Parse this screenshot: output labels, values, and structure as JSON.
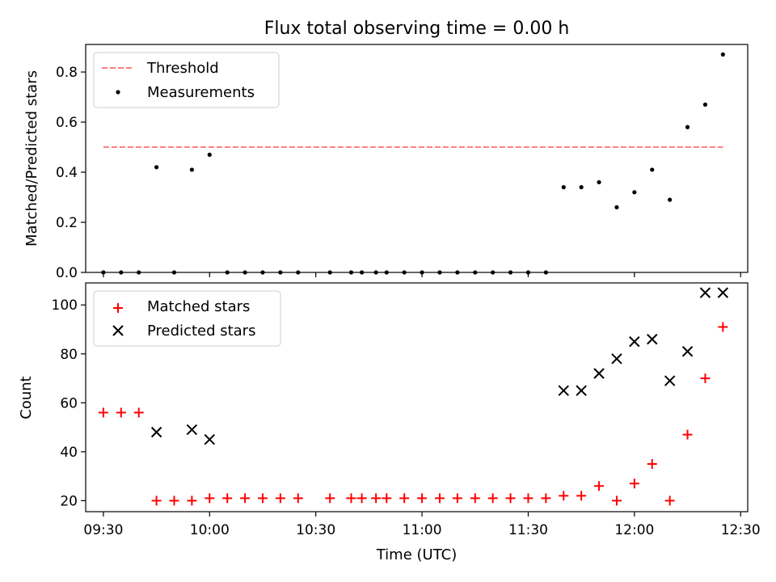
{
  "chart_data": [
    {
      "type": "scatter",
      "title": "Flux total observing time = 0.00 h",
      "xlabel": "",
      "ylabel": "Matched/Predicted stars",
      "xlim": [
        "09:25",
        "12:32"
      ],
      "ylim": [
        0,
        0.91
      ],
      "yticks": [
        "0.0",
        "0.2",
        "0.4",
        "0.6",
        "0.8"
      ],
      "legend": "top-left",
      "grid": false,
      "threshold": {
        "name": "Threshold",
        "value": 0.5,
        "x_start": "09:30",
        "x_end": "12:25",
        "color": "#ff7f7f"
      },
      "series": [
        {
          "name": "Measurements",
          "color": "#000000",
          "points": [
            [
              "09:30",
              0
            ],
            [
              "09:35",
              0
            ],
            [
              "09:40",
              0
            ],
            [
              "09:45",
              0.42
            ],
            [
              "09:50",
              0
            ],
            [
              "09:55",
              0.41
            ],
            [
              "10:00",
              0.47
            ],
            [
              "10:05",
              0
            ],
            [
              "10:10",
              0
            ],
            [
              "10:15",
              0
            ],
            [
              "10:20",
              0
            ],
            [
              "10:25",
              0
            ],
            [
              "10:34",
              0
            ],
            [
              "10:40",
              0
            ],
            [
              "10:43",
              0
            ],
            [
              "10:47",
              0
            ],
            [
              "10:50",
              0
            ],
            [
              "10:55",
              0
            ],
            [
              "11:00",
              0
            ],
            [
              "11:05",
              0
            ],
            [
              "11:10",
              0
            ],
            [
              "11:15",
              0
            ],
            [
              "11:20",
              0
            ],
            [
              "11:25",
              0
            ],
            [
              "11:30",
              0
            ],
            [
              "11:35",
              0
            ],
            [
              "11:40",
              0.34
            ],
            [
              "11:45",
              0.34
            ],
            [
              "11:50",
              0.36
            ],
            [
              "11:55",
              0.26
            ],
            [
              "12:00",
              0.32
            ],
            [
              "12:05",
              0.41
            ],
            [
              "12:10",
              0.29
            ],
            [
              "12:15",
              0.58
            ],
            [
              "12:20",
              0.67
            ],
            [
              "12:25",
              0.87
            ]
          ]
        }
      ]
    },
    {
      "type": "scatter",
      "title": "",
      "xlabel": "Time (UTC)",
      "ylabel": "Count",
      "xlim": [
        "09:25",
        "12:32"
      ],
      "ylim": [
        15.5,
        109
      ],
      "xticks": [
        "09:30",
        "10:00",
        "10:30",
        "11:00",
        "11:30",
        "12:00",
        "12:30"
      ],
      "yticks": [
        "20",
        "40",
        "60",
        "80",
        "100"
      ],
      "legend": "top-left",
      "grid": false,
      "series": [
        {
          "name": "Matched stars",
          "marker": "plus",
          "color": "#ff0000",
          "points": [
            [
              "09:30",
              56
            ],
            [
              "09:35",
              56
            ],
            [
              "09:40",
              56
            ],
            [
              "09:45",
              20
            ],
            [
              "09:50",
              20
            ],
            [
              "09:55",
              20
            ],
            [
              "10:00",
              21
            ],
            [
              "10:05",
              21
            ],
            [
              "10:10",
              21
            ],
            [
              "10:15",
              21
            ],
            [
              "10:20",
              21
            ],
            [
              "10:25",
              21
            ],
            [
              "10:34",
              21
            ],
            [
              "10:40",
              21
            ],
            [
              "10:43",
              21
            ],
            [
              "10:47",
              21
            ],
            [
              "10:50",
              21
            ],
            [
              "10:55",
              21
            ],
            [
              "11:00",
              21
            ],
            [
              "11:05",
              21
            ],
            [
              "11:10",
              21
            ],
            [
              "11:15",
              21
            ],
            [
              "11:20",
              21
            ],
            [
              "11:25",
              21
            ],
            [
              "11:30",
              21
            ],
            [
              "11:35",
              21
            ],
            [
              "11:40",
              22
            ],
            [
              "11:45",
              22
            ],
            [
              "11:50",
              26
            ],
            [
              "11:55",
              20
            ],
            [
              "12:00",
              27
            ],
            [
              "12:05",
              35
            ],
            [
              "12:10",
              20
            ],
            [
              "12:15",
              47
            ],
            [
              "12:20",
              70
            ],
            [
              "12:25",
              91
            ]
          ]
        },
        {
          "name": "Predicted stars",
          "marker": "x",
          "color": "#000000",
          "points": [
            [
              "09:45",
              48
            ],
            [
              "09:55",
              49
            ],
            [
              "10:00",
              45
            ],
            [
              "11:40",
              65
            ],
            [
              "11:45",
              65
            ],
            [
              "11:50",
              72
            ],
            [
              "11:55",
              78
            ],
            [
              "12:00",
              85
            ],
            [
              "12:05",
              86
            ],
            [
              "12:10",
              69
            ],
            [
              "12:15",
              81
            ],
            [
              "12:20",
              105
            ],
            [
              "12:25",
              105
            ]
          ]
        }
      ]
    }
  ]
}
